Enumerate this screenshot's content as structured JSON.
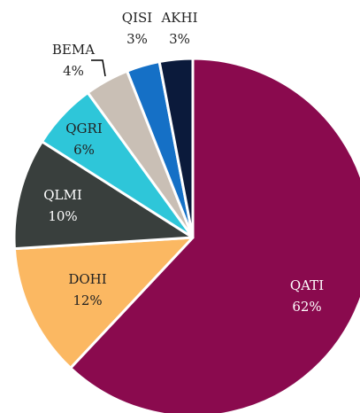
{
  "chart_data": {
    "type": "pie",
    "categories": [
      "QATI",
      "DOHI",
      "QLMI",
      "QGRI",
      "BEMA",
      "QISI",
      "AKHI"
    ],
    "values": [
      62,
      12,
      10,
      6,
      4,
      3,
      3
    ],
    "value_labels": [
      "62%",
      "12%",
      "10%",
      "6%",
      "4%",
      "3%",
      "3%"
    ],
    "colors": [
      "#8a0a4e",
      "#fbb862",
      "#393f3d",
      "#2ec6d9",
      "#c9bfb5",
      "#1570c6",
      "#0b1a3b"
    ],
    "start_angle": 0,
    "direction": "clockwise"
  }
}
